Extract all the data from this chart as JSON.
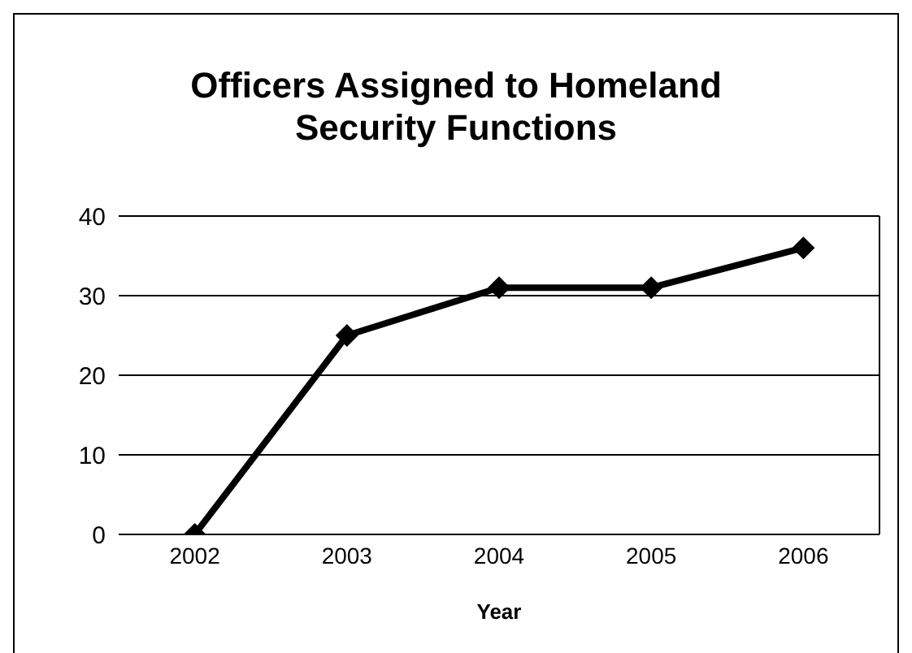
{
  "chart_data": {
    "type": "line",
    "title": "Officers Assigned to Homeland Security Functions",
    "xlabel": "Year",
    "categories": [
      "2002",
      "2003",
      "2004",
      "2005",
      "2006"
    ],
    "series": [
      {
        "color": "#000000",
        "values": [
          0,
          25,
          31,
          31,
          36
        ]
      }
    ],
    "ylim": [
      0,
      40
    ],
    "yticks": [
      0,
      10,
      20,
      30,
      40
    ],
    "grid": "y",
    "legend": false,
    "marker": "diamond",
    "line_style": "solid"
  }
}
